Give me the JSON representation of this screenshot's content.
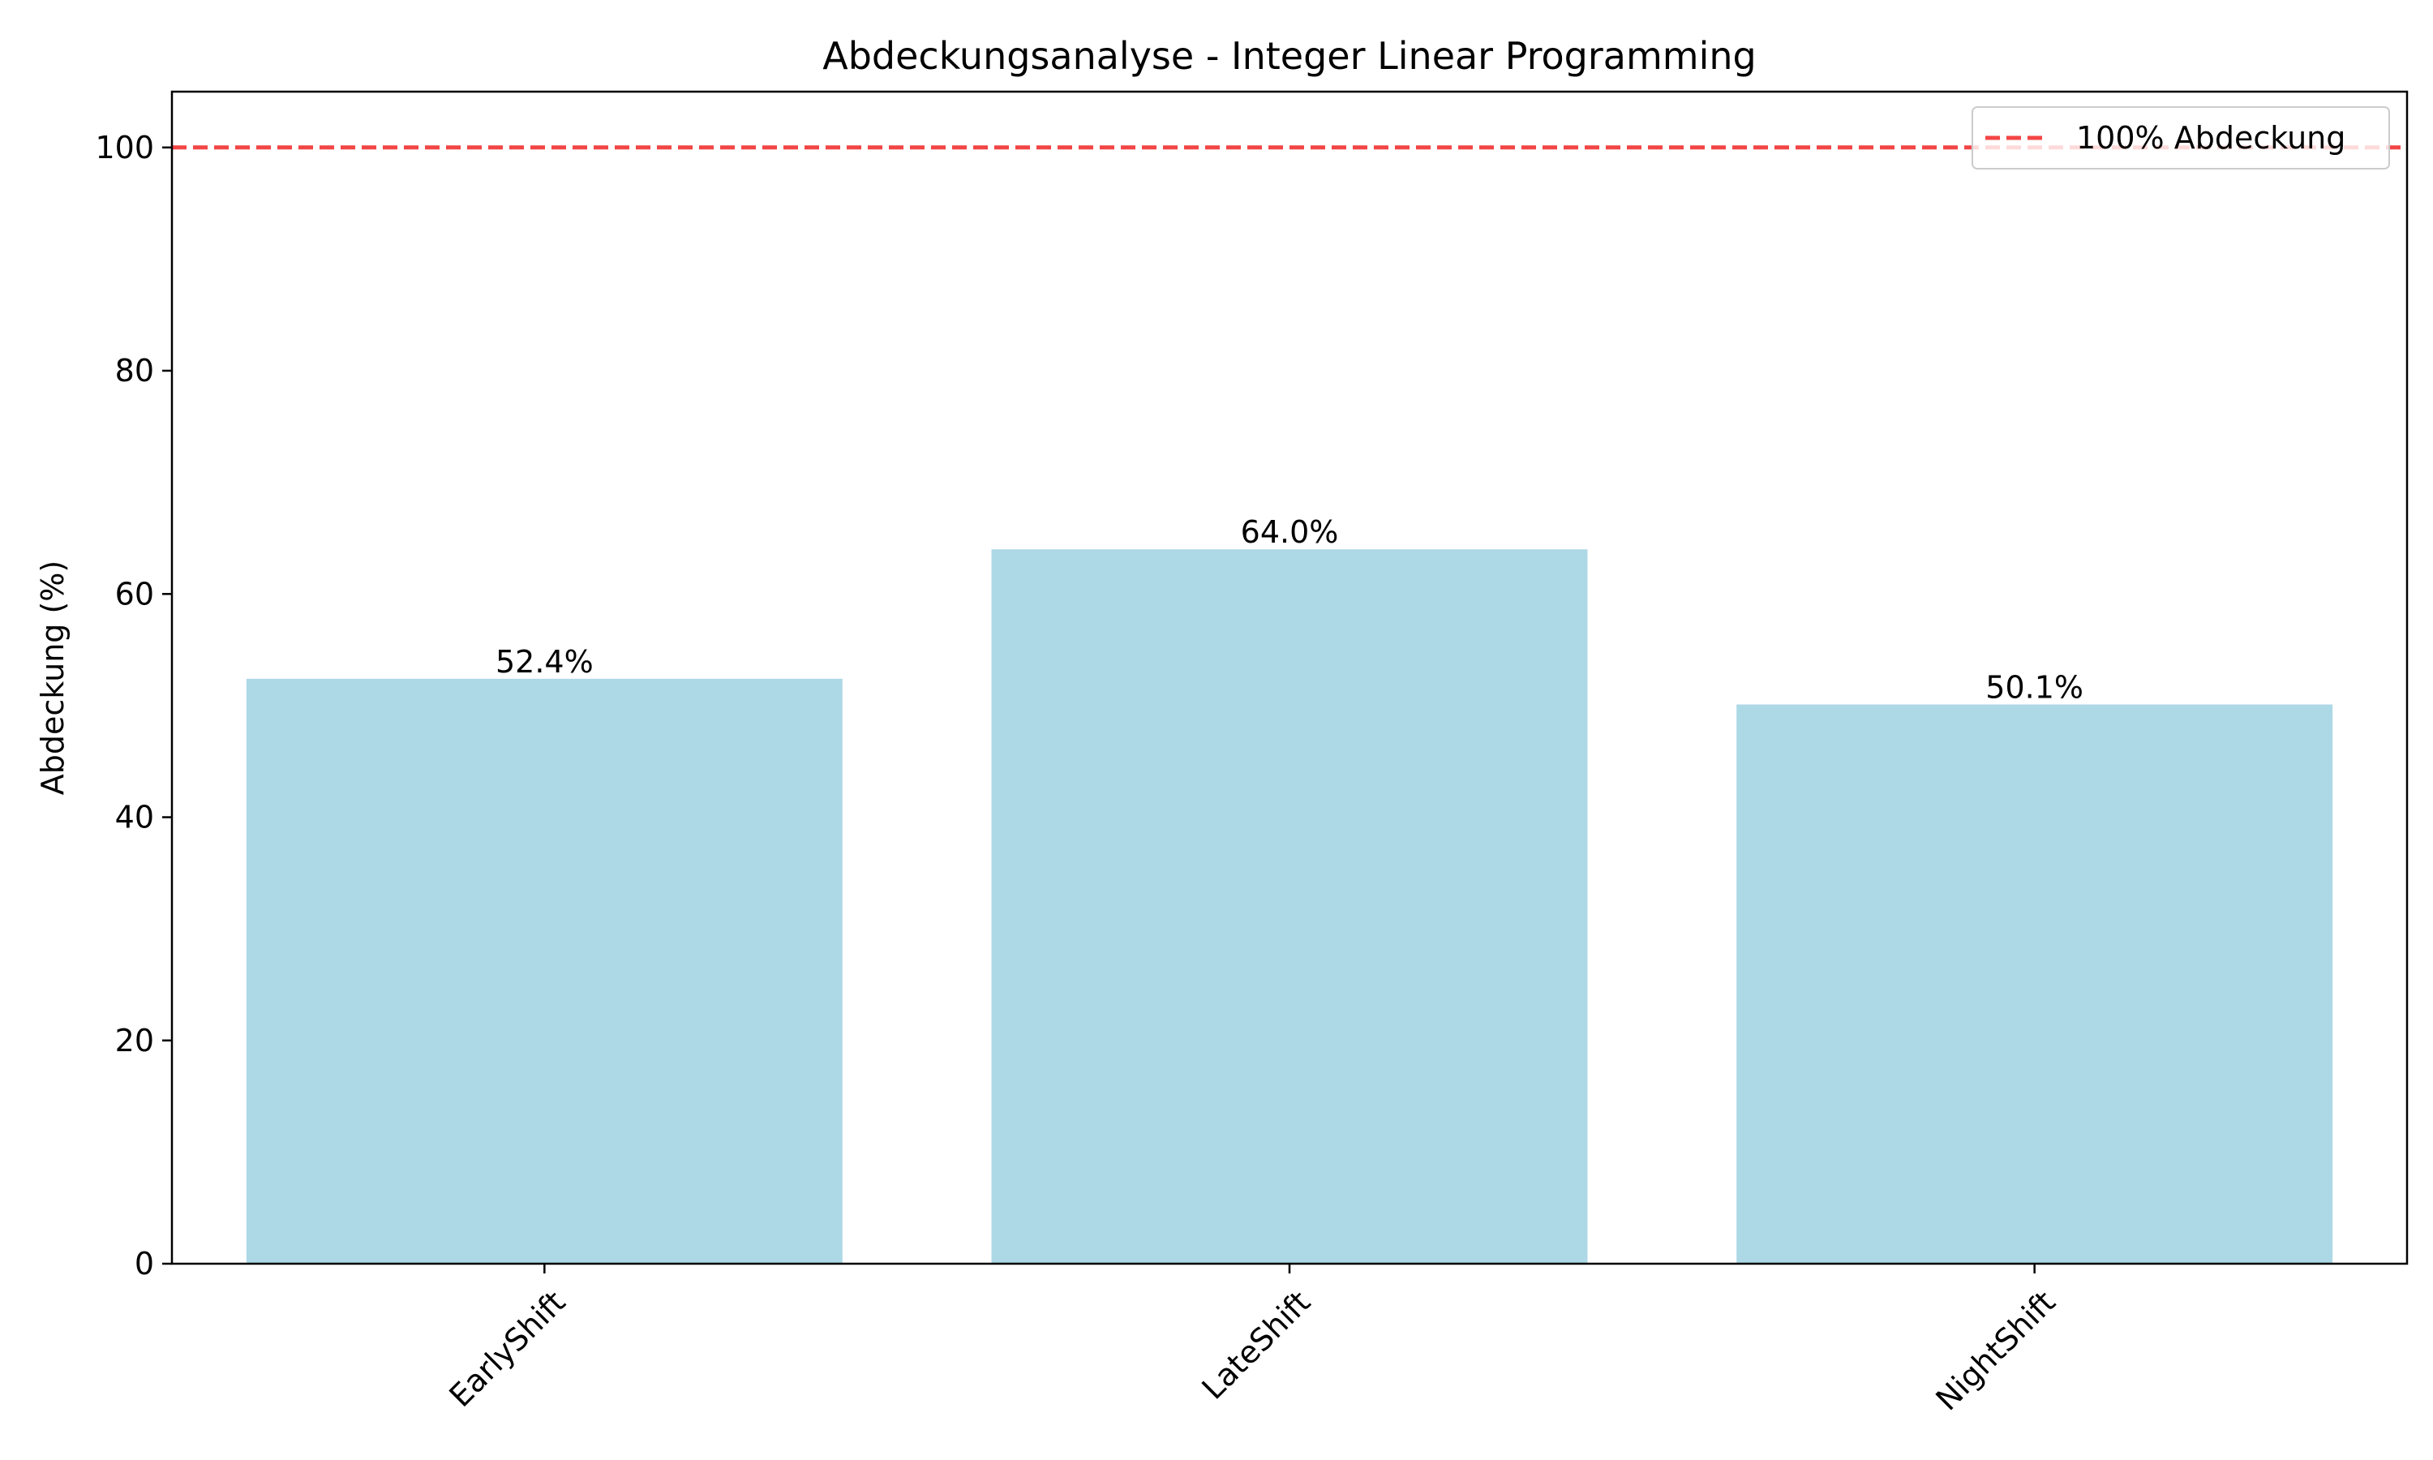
{
  "chart_data": {
    "type": "bar",
    "title": "Abdeckungsanalyse - Integer Linear Programming",
    "xlabel": "",
    "ylabel": "Abdeckung (%)",
    "categories": [
      "EarlyShift",
      "LateShift",
      "NightShift"
    ],
    "values": [
      52.4,
      64.0,
      50.1
    ],
    "value_labels": [
      "52.4%",
      "64.0%",
      "50.1%"
    ],
    "ylim": [
      0,
      105
    ],
    "yticks": [
      0,
      20,
      40,
      60,
      80,
      100
    ],
    "ytick_labels": [
      "0",
      "20",
      "40",
      "60",
      "80",
      "100"
    ],
    "reference_line": {
      "value": 100,
      "label": "100% Abdeckung",
      "style": "dashed",
      "color": "#f24545"
    },
    "legend": {
      "placement": "top-right",
      "entries": [
        "100% Abdeckung"
      ]
    },
    "grid": false,
    "colors": {
      "bar": "#add8e6",
      "reference_line": "#f24545"
    }
  }
}
